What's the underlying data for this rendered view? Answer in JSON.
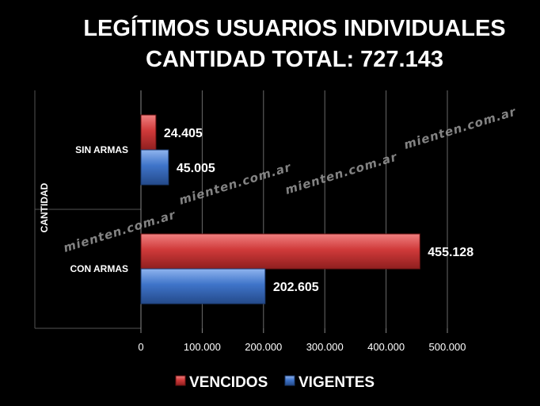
{
  "chart_data": {
    "type": "bar",
    "orientation": "horizontal",
    "title": "LEGÍTIMOS USUARIOS INDIVIDUALES",
    "subtitle": "CANTIDAD TOTAL: 727.143",
    "ylabel": "CANTIDAD",
    "xlabel": "",
    "categories": [
      "SIN ARMAS",
      "CON ARMAS"
    ],
    "series": [
      {
        "name": "VENCIDOS",
        "color": "#cc3333",
        "values": [
          24405,
          455128
        ],
        "labels": [
          "24.405",
          "455.128"
        ]
      },
      {
        "name": "VIGENTES",
        "color": "#3a6fc4",
        "values": [
          45005,
          202605
        ],
        "labels": [
          "45.005",
          "202.605"
        ]
      }
    ],
    "xlim": [
      0,
      500000
    ],
    "xticks": [
      0,
      100000,
      200000,
      300000,
      400000,
      500000
    ],
    "xtick_labels": [
      "0",
      "100.000",
      "200.000",
      "300.000",
      "400.000",
      "500.000"
    ],
    "grid": true,
    "legend_position": "bottom"
  },
  "watermarks": [
    "mienten.com.ar",
    "mienten.com.ar",
    "mienten.com.ar",
    "mienten.com.ar"
  ]
}
